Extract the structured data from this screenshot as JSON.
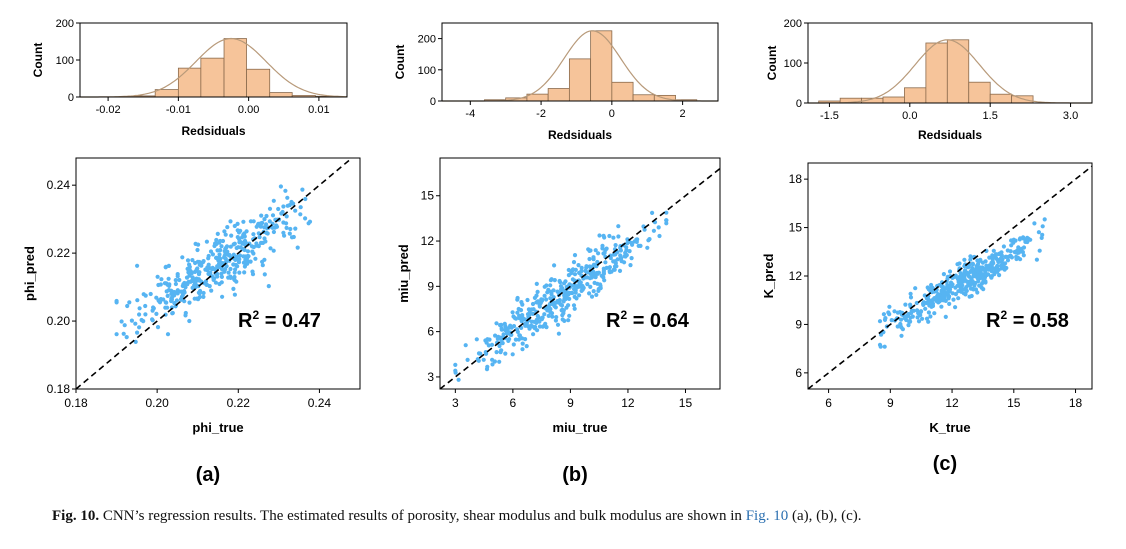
{
  "caption": {
    "label": "Fig. 10.",
    "text_1": "CNN’s regression results. The estimated results of porosity, shear modulus and bulk modulus are shown in",
    "ref": "Fig. 10",
    "text_2": "(a), (b), (c)."
  },
  "panels": [
    {
      "id": "a",
      "label": "(a)",
      "r2_text": "R",
      "r2_sup": "2",
      "r2_value": " = 0.47",
      "hist": {
        "xlabel": "Redsiduals",
        "ylabel": "Count",
        "xlim": [
          -0.024,
          0.014
        ],
        "ylim": [
          0,
          200
        ],
        "xticks": [
          -0.02,
          -0.01,
          0.0,
          0.01
        ],
        "xtick_labels": [
          "-0.02",
          "-0.01",
          "0.00",
          "0.01"
        ],
        "yticks": [
          0,
          100,
          200
        ],
        "ytick_labels": [
          "0",
          "100",
          "200"
        ],
        "bins": [
          {
            "x0": -0.0165,
            "x1": -0.0133,
            "count": 3
          },
          {
            "x0": -0.0133,
            "x1": -0.01,
            "count": 20
          },
          {
            "x0": -0.01,
            "x1": -0.0068,
            "count": 78
          },
          {
            "x0": -0.0068,
            "x1": -0.0035,
            "count": 105
          },
          {
            "x0": -0.0035,
            "x1": -0.0003,
            "count": 158
          },
          {
            "x0": -0.0003,
            "x1": 0.003,
            "count": 75
          },
          {
            "x0": 0.003,
            "x1": 0.0062,
            "count": 12
          },
          {
            "x0": 0.0062,
            "x1": 0.0095,
            "count": 4
          },
          {
            "x0": 0.0095,
            "x1": 0.0127,
            "count": 2
          }
        ],
        "curve": {
          "mean": -0.0025,
          "sd": 0.005,
          "peak": 158
        }
      },
      "scatter": {
        "type": "scatter",
        "xlabel": "phi_true",
        "ylabel": "phi_pred",
        "xlim": [
          0.18,
          0.25
        ],
        "ylim": [
          0.18,
          0.248
        ],
        "xticks": [
          0.18,
          0.2,
          0.22,
          0.24
        ],
        "xtick_labels": [
          "0.18",
          "0.20",
          "0.22",
          "0.24"
        ],
        "yticks": [
          0.18,
          0.2,
          0.22,
          0.24
        ],
        "ytick_labels": [
          "0.18",
          "0.20",
          "0.22",
          "0.24"
        ],
        "trend": {
          "x0": 0.19,
          "x1": 0.24,
          "y0": 0.1985,
          "y1": 0.235
        },
        "spread": 0.0045,
        "n": 420,
        "seed": 11
      }
    },
    {
      "id": "b",
      "label": "(b)",
      "r2_text": "R",
      "r2_sup": "2",
      "r2_value": " = 0.64",
      "hist": {
        "xlabel": "Redsiduals",
        "ylabel": "Count",
        "xlim": [
          -4.8,
          3.0
        ],
        "ylim": [
          0,
          250
        ],
        "xticks": [
          -4,
          -2,
          0,
          2
        ],
        "xtick_labels": [
          "-4",
          "-2",
          "0",
          "2"
        ],
        "yticks": [
          0,
          100,
          200
        ],
        "ytick_labels": [
          "0",
          "100",
          "200"
        ],
        "bins": [
          {
            "x0": -3.6,
            "x1": -3.0,
            "count": 4
          },
          {
            "x0": -3.0,
            "x1": -2.4,
            "count": 10
          },
          {
            "x0": -2.4,
            "x1": -1.8,
            "count": 22
          },
          {
            "x0": -1.8,
            "x1": -1.2,
            "count": 40
          },
          {
            "x0": -1.2,
            "x1": -0.6,
            "count": 135
          },
          {
            "x0": -0.6,
            "x1": 0.0,
            "count": 225
          },
          {
            "x0": 0.0,
            "x1": 0.6,
            "count": 60
          },
          {
            "x0": 0.6,
            "x1": 1.2,
            "count": 20
          },
          {
            "x0": 1.2,
            "x1": 1.8,
            "count": 18
          },
          {
            "x0": 1.8,
            "x1": 2.4,
            "count": 4
          }
        ],
        "curve": {
          "mean": -0.55,
          "sd": 0.8,
          "peak": 225
        }
      },
      "scatter": {
        "type": "scatter",
        "xlabel": "miu_true",
        "ylabel": "miu_pred",
        "xlim": [
          2.2,
          16.8
        ],
        "ylim": [
          2.2,
          17.5
        ],
        "xticks": [
          3,
          6,
          9,
          12,
          15
        ],
        "xtick_labels": [
          "3",
          "6",
          "9",
          "12",
          "15"
        ],
        "yticks": [
          3,
          6,
          9,
          12,
          15
        ],
        "ytick_labels": [
          "3",
          "6",
          "9",
          "12",
          "15"
        ],
        "trend": {
          "x0": 3.0,
          "x1": 14.0,
          "y0": 3.4,
          "y1": 13.3
        },
        "spread": 0.75,
        "n": 420,
        "seed": 23
      }
    },
    {
      "id": "c",
      "label": "(c)",
      "r2_text": "R",
      "r2_sup": "2",
      "r2_value": " = 0.58",
      "hist": {
        "xlabel": "Redsiduals",
        "ylabel": "Count",
        "xlim": [
          -1.9,
          3.4
        ],
        "ylim": [
          0,
          200
        ],
        "xticks": [
          -1.5,
          0.0,
          1.5,
          3.0
        ],
        "xtick_labels": [
          "-1.5",
          "0.0",
          "1.5",
          "3.0"
        ],
        "yticks": [
          0,
          100,
          200
        ],
        "ytick_labels": [
          "0",
          "100",
          "200"
        ],
        "bins": [
          {
            "x0": -1.7,
            "x1": -1.3,
            "count": 5
          },
          {
            "x0": -1.3,
            "x1": -0.9,
            "count": 12
          },
          {
            "x0": -0.9,
            "x1": -0.5,
            "count": 12
          },
          {
            "x0": -0.5,
            "x1": -0.1,
            "count": 15
          },
          {
            "x0": -0.1,
            "x1": 0.3,
            "count": 38
          },
          {
            "x0": 0.3,
            "x1": 0.7,
            "count": 150
          },
          {
            "x0": 0.7,
            "x1": 1.1,
            "count": 158
          },
          {
            "x0": 1.1,
            "x1": 1.5,
            "count": 52
          },
          {
            "x0": 1.5,
            "x1": 1.9,
            "count": 22
          },
          {
            "x0": 1.9,
            "x1": 2.3,
            "count": 18
          }
        ],
        "curve": {
          "mean": 0.7,
          "sd": 0.6,
          "peak": 158
        }
      },
      "scatter": {
        "type": "scatter",
        "xlabel": "K_true",
        "ylabel": "K_pred",
        "xlim": [
          5.0,
          18.8
        ],
        "ylim": [
          5.0,
          19.0
        ],
        "xticks": [
          6,
          9,
          12,
          15,
          18
        ],
        "xtick_labels": [
          "6",
          "9",
          "12",
          "15",
          "18"
        ],
        "yticks": [
          6,
          9,
          12,
          15,
          18
        ],
        "ytick_labels": [
          "6",
          "9",
          "12",
          "15",
          "18"
        ],
        "trend": {
          "x0": 8.5,
          "x1": 16.5,
          "y0": 8.7,
          "y1": 14.6
        },
        "spread": 0.55,
        "n": 420,
        "seed": 37
      }
    }
  ],
  "colors": {
    "bar_fill": "#f6c49a",
    "bar_stroke": "#8a6a4c",
    "curve": "#b89a7a",
    "point": "#56b4f2",
    "identity_line": "#000000"
  }
}
